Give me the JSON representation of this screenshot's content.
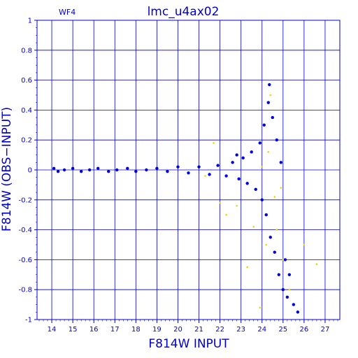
{
  "chart_data": {
    "type": "scatter",
    "title": "lmc_u4ax02",
    "panel_label": "WF4",
    "xlabel": "F814W INPUT",
    "ylabel": "F814W (OBS−INPUT)",
    "xlim": [
      13.3,
      27.7
    ],
    "ylim": [
      -1,
      1
    ],
    "x_ticks": [
      14,
      15,
      16,
      17,
      18,
      19,
      20,
      21,
      22,
      23,
      24,
      25,
      26,
      27
    ],
    "y_ticks": [
      -1,
      -0.8,
      -0.6,
      -0.4,
      -0.2,
      0,
      0.2,
      0.4,
      0.6,
      0.8,
      1
    ],
    "grid": true,
    "colors": {
      "axes": "#0000cc",
      "primary_points": "#0000dd",
      "secondary_points": "#e8d800"
    },
    "series": [
      {
        "color_key": "primary_points",
        "points": [
          [
            14.1,
            0.01
          ],
          [
            14.3,
            -0.01
          ],
          [
            14.6,
            0.0
          ],
          [
            15.0,
            0.01
          ],
          [
            15.4,
            -0.01
          ],
          [
            15.8,
            0.0
          ],
          [
            16.2,
            0.01
          ],
          [
            16.7,
            -0.01
          ],
          [
            17.1,
            0.0
          ],
          [
            17.6,
            0.01
          ],
          [
            18.0,
            -0.01
          ],
          [
            18.5,
            0.0
          ],
          [
            19.0,
            0.01
          ],
          [
            19.5,
            -0.01
          ],
          [
            20.0,
            0.02
          ],
          [
            20.5,
            -0.02
          ],
          [
            21.0,
            0.02
          ],
          [
            21.5,
            -0.03
          ],
          [
            21.9,
            0.03
          ],
          [
            22.3,
            -0.04
          ],
          [
            22.6,
            0.05
          ],
          [
            22.9,
            -0.06
          ],
          [
            23.1,
            0.08
          ],
          [
            23.3,
            -0.09
          ],
          [
            23.5,
            0.12
          ],
          [
            23.7,
            -0.13
          ],
          [
            23.9,
            0.18
          ],
          [
            24.0,
            -0.2
          ],
          [
            24.1,
            0.3
          ],
          [
            24.2,
            -0.3
          ],
          [
            24.3,
            0.45
          ],
          [
            24.4,
            -0.45
          ],
          [
            24.5,
            0.35
          ],
          [
            24.6,
            -0.55
          ],
          [
            24.7,
            0.2
          ],
          [
            24.8,
            -0.7
          ],
          [
            24.9,
            0.05
          ],
          [
            25.0,
            -0.8
          ],
          [
            25.1,
            -0.6
          ],
          [
            25.2,
            -0.85
          ],
          [
            25.3,
            -0.7
          ],
          [
            25.5,
            -0.9
          ],
          [
            25.7,
            -0.95
          ],
          [
            24.35,
            0.57
          ],
          [
            22.8,
            0.1
          ]
        ]
      },
      {
        "color_key": "secondary_points",
        "points": [
          [
            21.3,
            -0.04
          ],
          [
            21.7,
            0.18
          ],
          [
            22.0,
            -0.22
          ],
          [
            22.3,
            -0.3
          ],
          [
            22.8,
            -0.24
          ],
          [
            23.3,
            -0.65
          ],
          [
            23.6,
            -0.38
          ],
          [
            23.9,
            -0.92
          ],
          [
            24.0,
            0.02
          ],
          [
            24.2,
            -0.5
          ],
          [
            24.3,
            0.12
          ],
          [
            24.4,
            0.5
          ],
          [
            24.6,
            -0.18
          ],
          [
            24.7,
            -0.4
          ],
          [
            24.9,
            -0.12
          ],
          [
            25.0,
            -0.6
          ],
          [
            25.3,
            -0.8
          ],
          [
            26.0,
            -0.5
          ],
          [
            26.6,
            -0.63
          ]
        ]
      }
    ]
  }
}
